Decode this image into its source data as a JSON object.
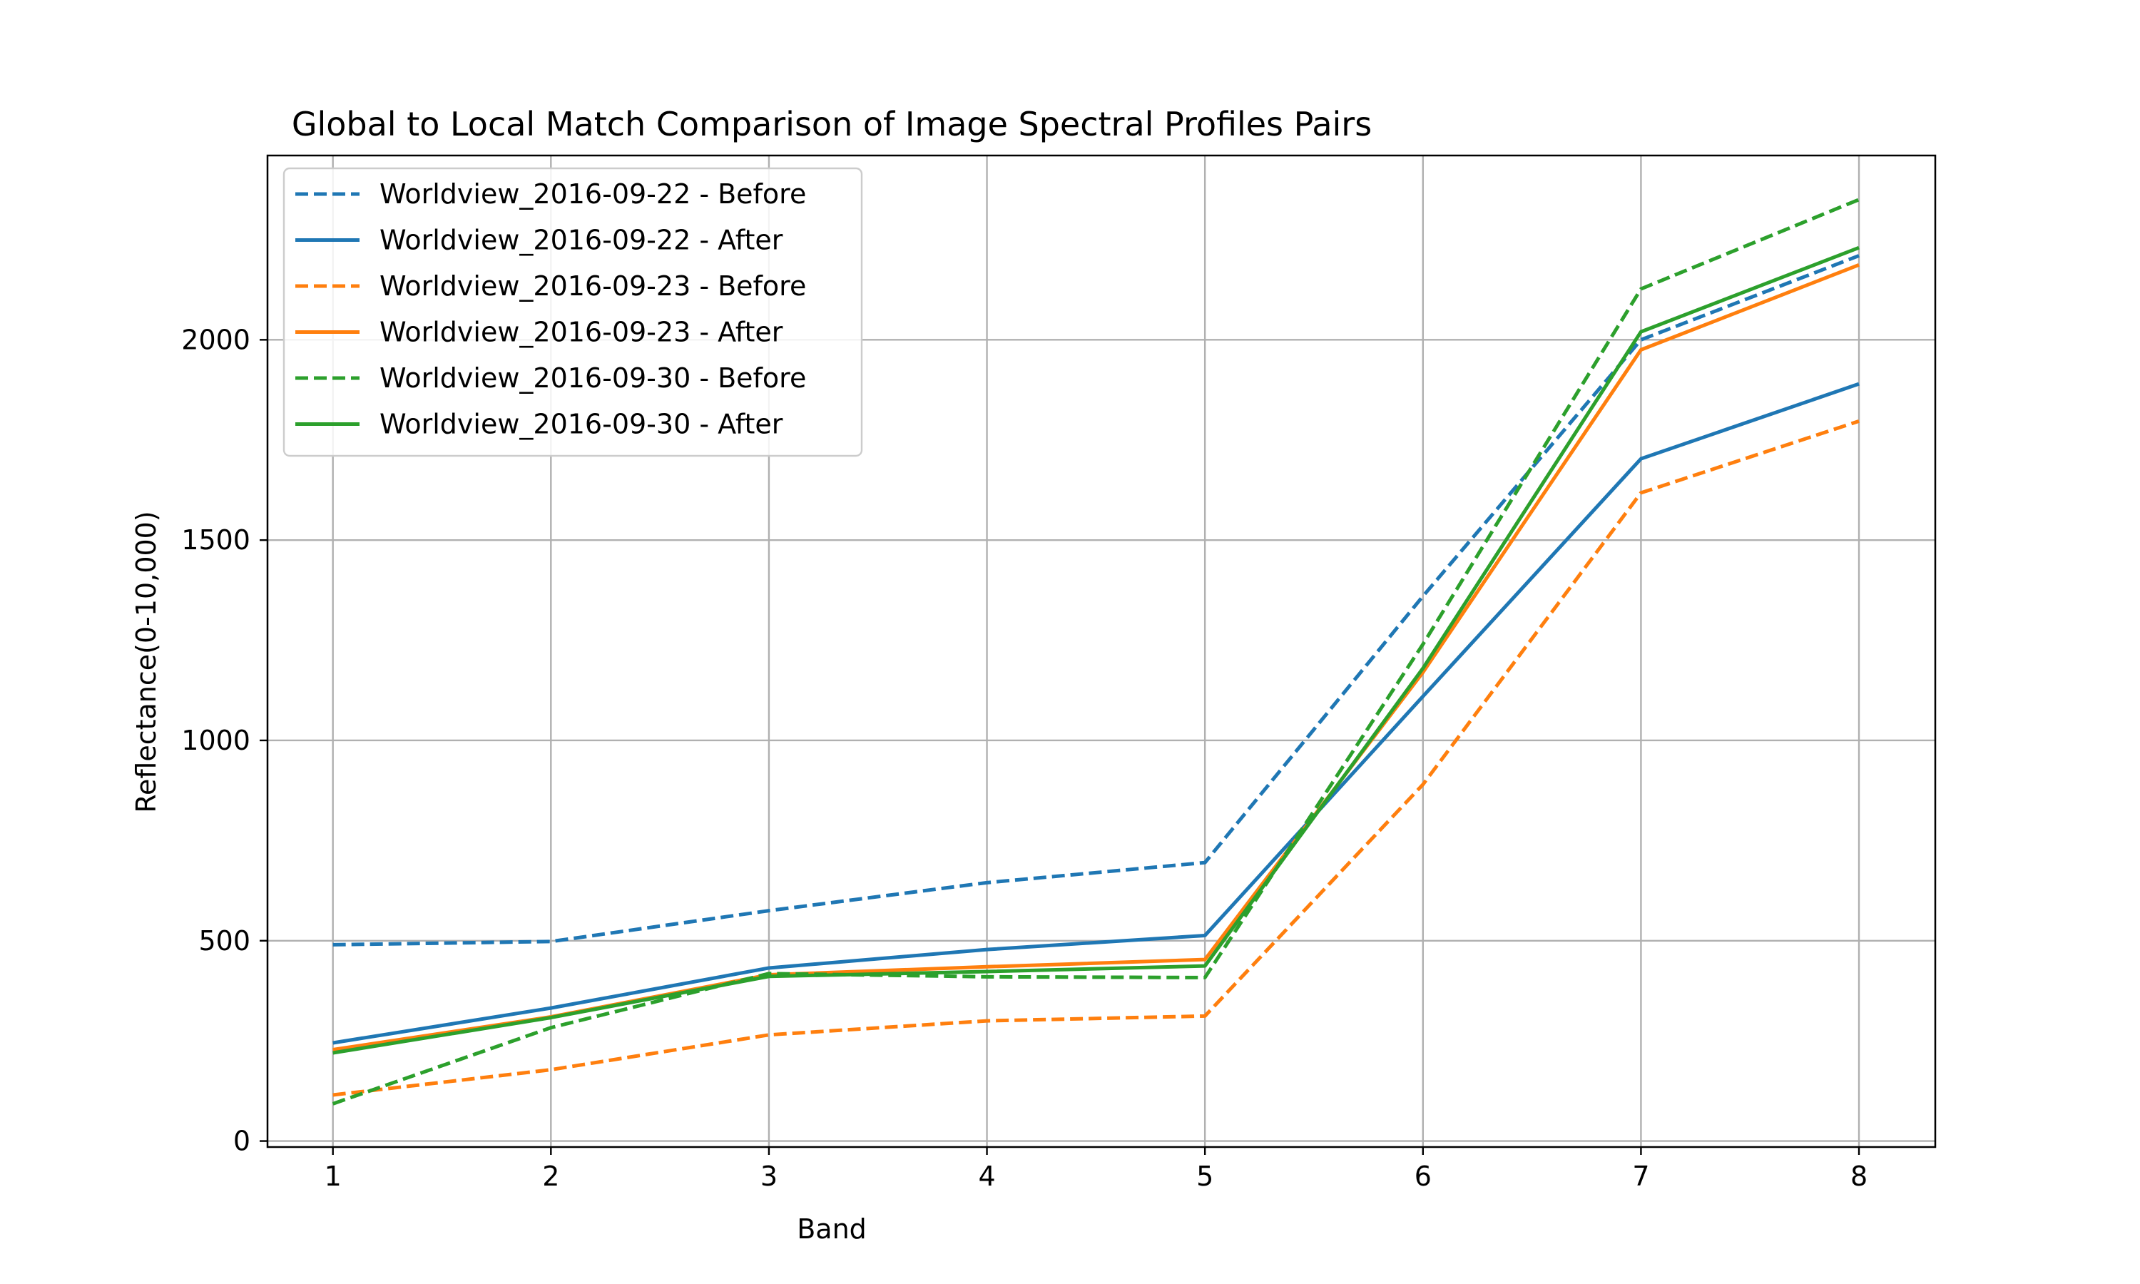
{
  "chart_data": {
    "type": "line",
    "title": "Global to Local Match Comparison of Image Spectral Profiles Pairs",
    "xlabel": "Band",
    "ylabel": "Reflectance(0-10,000)",
    "x": [
      1,
      2,
      3,
      4,
      5,
      6,
      7,
      8
    ],
    "xlim": [
      0.7,
      8.35
    ],
    "ylim": [
      -15,
      2460
    ],
    "yticks": [
      0,
      500,
      1000,
      1500,
      2000
    ],
    "grid": true,
    "legend_position": "upper-left",
    "series": [
      {
        "name": "Worldview_2016-09-22 - Before",
        "color": "#1f77b4",
        "style": "dashed",
        "values": [
          490,
          498,
          575,
          645,
          695,
          1360,
          2000,
          2210
        ]
      },
      {
        "name": "Worldview_2016-09-22 - After",
        "color": "#1f77b4",
        "style": "solid",
        "values": [
          245,
          332,
          432,
          478,
          513,
          1110,
          1703,
          1890
        ]
      },
      {
        "name": "Worldview_2016-09-23 - Before",
        "color": "#ff7f0e",
        "style": "dashed",
        "values": [
          115,
          178,
          265,
          300,
          312,
          890,
          1618,
          1797
        ]
      },
      {
        "name": "Worldview_2016-09-23 - After",
        "color": "#ff7f0e",
        "style": "solid",
        "values": [
          228,
          310,
          415,
          435,
          453,
          1170,
          1975,
          2187
        ]
      },
      {
        "name": "Worldview_2016-09-30 - Before",
        "color": "#2ca02c",
        "style": "dashed",
        "values": [
          93,
          283,
          418,
          410,
          408,
          1240,
          2127,
          2350
        ]
      },
      {
        "name": "Worldview_2016-09-30 - After",
        "color": "#2ca02c",
        "style": "solid",
        "values": [
          220,
          308,
          411,
          423,
          437,
          1180,
          2020,
          2230
        ]
      }
    ]
  }
}
